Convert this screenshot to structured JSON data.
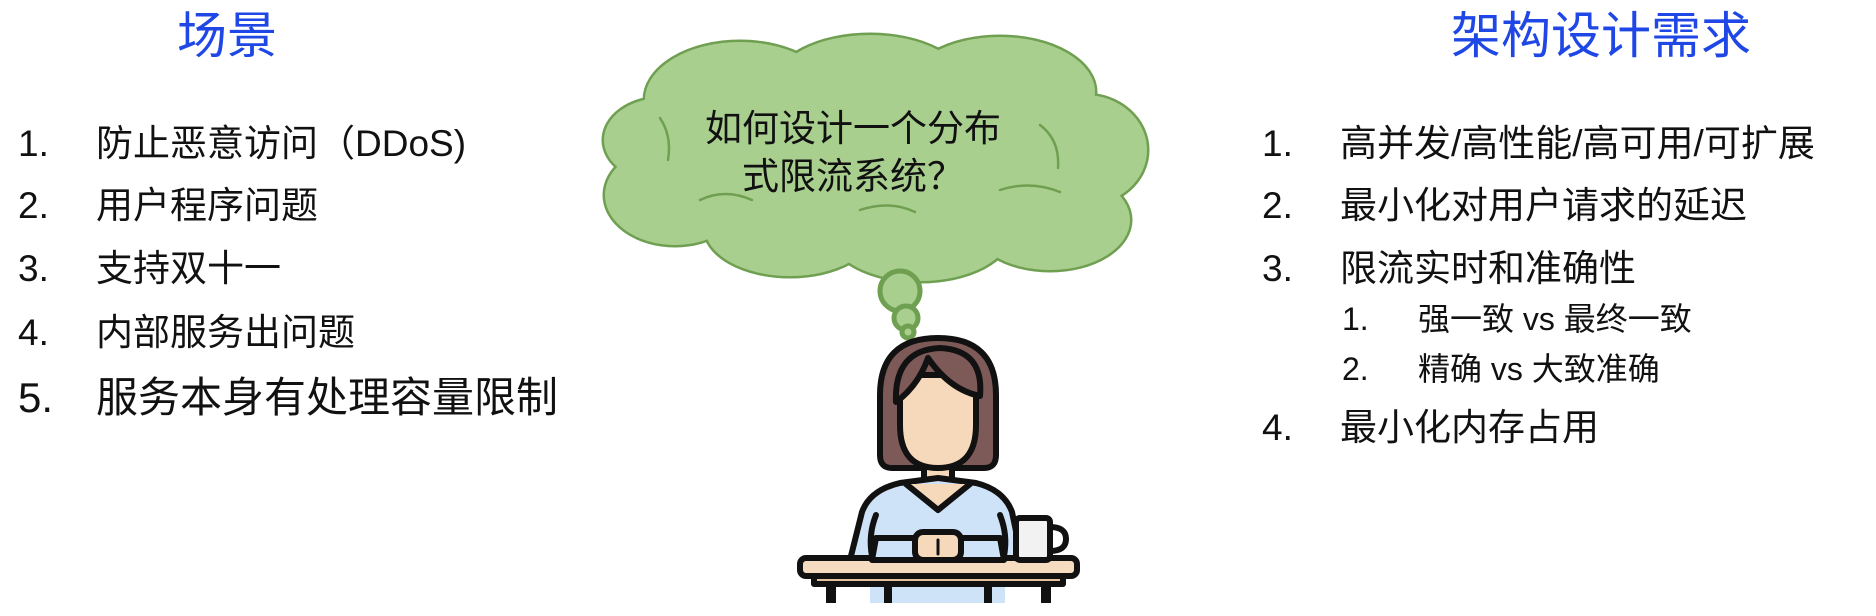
{
  "left_panel": {
    "title": "场景",
    "items": [
      {
        "num": "1.",
        "text": "防止恶意访问（DDoS)"
      },
      {
        "num": "2.",
        "text": "用户程序问题"
      },
      {
        "num": "3.",
        "text": "支持双十一"
      },
      {
        "num": "4.",
        "text": "内部服务出问题"
      },
      {
        "num": "5.",
        "text": "服务本身有处理容量限制"
      }
    ]
  },
  "right_panel": {
    "title": "架构设计需求",
    "items": [
      {
        "num": "1.",
        "text": "高并发/高性能/高可用/可扩展"
      },
      {
        "num": "2.",
        "text": "最小化对用户请求的延迟"
      },
      {
        "num": "3.",
        "text": "限流实时和准确性",
        "subitems": [
          {
            "num": "1.",
            "text": "强一致 vs 最终一致"
          },
          {
            "num": "2.",
            "text": "精确 vs 大致准确"
          }
        ]
      },
      {
        "num": "4.",
        "text": "最小化内存占用"
      }
    ]
  },
  "thought_bubble": {
    "lines": [
      "如何设计一个分布",
      "式限流系统？"
    ]
  },
  "illustration": {
    "icon": "woman-thinking-at-desk-icon"
  },
  "colors": {
    "title": "#1f47e6",
    "cloud_fill": "#a9cf8f",
    "cloud_stroke": "#6f9f50",
    "hair": "#7d5a58",
    "skin": "#f6d9ba",
    "shirt": "#cfe3f8",
    "desk": "#f5dcc0"
  }
}
